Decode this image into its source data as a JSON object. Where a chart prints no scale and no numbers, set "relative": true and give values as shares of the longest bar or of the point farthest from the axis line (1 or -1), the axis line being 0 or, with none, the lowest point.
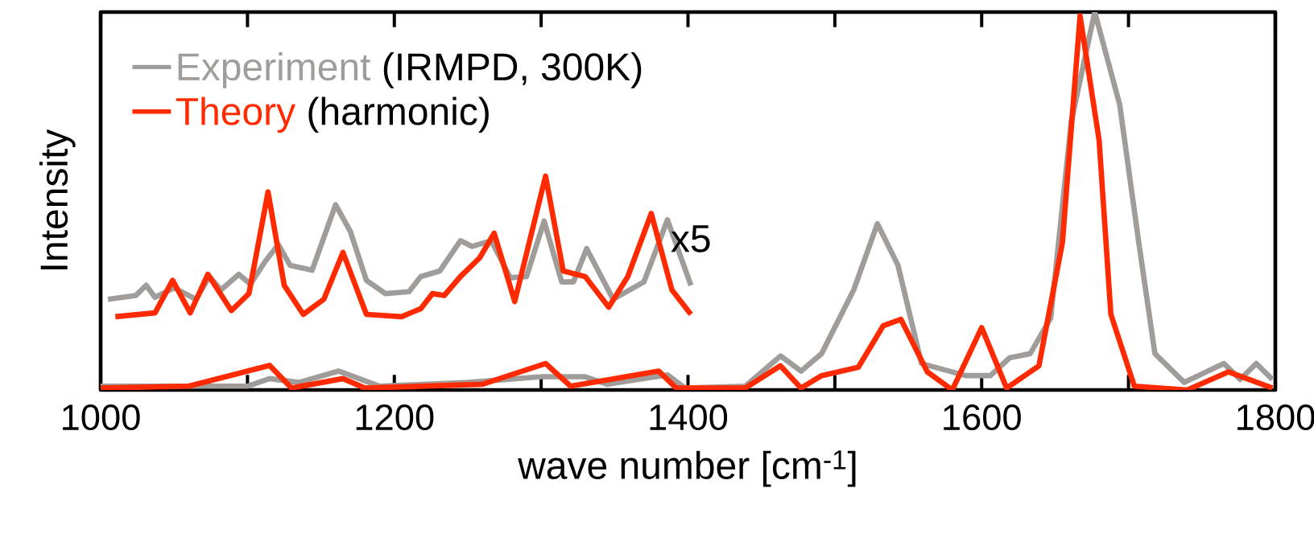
{
  "chart_data": {
    "type": "line",
    "relative": true,
    "xlabel": "wave number [cm$^{-1}$]",
    "ylabel": "Intensity",
    "xlim": [
      1000,
      1800
    ],
    "xticks": [
      1000,
      1200,
      1400,
      1600,
      1800
    ],
    "legend": "top left",
    "grid": false,
    "marker": "none",
    "line_style": "solid",
    "annotations": [
      "(IRMPD, 300K)",
      "(harmonic)",
      "x5"
    ],
    "series": [
      {
        "name": "Experiment",
        "color": "#a09c9a",
        "x": [
          1000,
          1100,
          1115,
          1135,
          1162,
          1190,
          1250,
          1300,
          1330,
          1345,
          1386,
          1398,
          1439,
          1463,
          1477,
          1491,
          1513,
          1529,
          1543,
          1559,
          1589,
          1606,
          1619,
          1633,
          1647,
          1661,
          1677,
          1694,
          1707,
          1718,
          1738,
          1765,
          1776,
          1787,
          1798
        ],
        "values": [
          0.01,
          0.01,
          0.03,
          0.02,
          0.05,
          0.01,
          0.02,
          0.035,
          0.035,
          0.015,
          0.04,
          0.005,
          0.01,
          0.09,
          0.05,
          0.096,
          0.266,
          0.44,
          0.33,
          0.07,
          0.038,
          0.038,
          0.085,
          0.096,
          0.19,
          0.71,
          1,
          0.755,
          0.39,
          0.096,
          0.02,
          0.07,
          0.028,
          0.07,
          0.028
        ]
      },
      {
        "name": "Theory",
        "color": "#ff2a00",
        "x": [
          1000,
          1060,
          1115,
          1130,
          1165,
          1180,
          1260,
          1303,
          1320,
          1380,
          1392,
          1439,
          1463,
          1477,
          1491,
          1516,
          1533,
          1545,
          1563,
          1580,
          1600,
          1617,
          1639,
          1655,
          1667,
          1680,
          1688,
          1704,
          1740,
          1768,
          1798
        ],
        "values": [
          0.005,
          0.01,
          0.065,
          0.005,
          0.03,
          0.005,
          0.015,
          0.07,
          0.01,
          0.05,
          0.005,
          0.005,
          0.064,
          0.005,
          0.038,
          0.06,
          0.17,
          0.187,
          0.048,
          0,
          0.165,
          0.005,
          0.064,
          0.39,
          0.99,
          0.66,
          0.2,
          0.01,
          0,
          0.048,
          0.005
        ]
      },
      {
        "color": "#a09c9a",
        "x": [
          1005,
          1024,
          1031,
          1037,
          1050,
          1065,
          1074,
          1082,
          1094,
          1102,
          1112,
          1121,
          1129,
          1144,
          1160,
          1170,
          1181,
          1194,
          1210,
          1218,
          1231,
          1245,
          1253,
          1266,
          1279,
          1290,
          1302,
          1314,
          1322,
          1331,
          1349,
          1370,
          1386,
          1402
        ],
        "values": [
          0.24,
          0.25,
          0.277,
          0.245,
          0.27,
          0.24,
          0.3,
          0.265,
          0.306,
          0.28,
          0.34,
          0.385,
          0.33,
          0.317,
          0.49,
          0.42,
          0.29,
          0.255,
          0.26,
          0.3,
          0.315,
          0.395,
          0.38,
          0.395,
          0.297,
          0.3,
          0.447,
          0.286,
          0.286,
          0.374,
          0.24,
          0.286,
          0.45,
          0.277
        ]
      },
      {
        "color": "#ff2a00",
        "x": [
          1010,
          1037,
          1049,
          1061,
          1073,
          1089,
          1101,
          1114,
          1125,
          1138,
          1152,
          1165,
          1181,
          1205,
          1218,
          1226,
          1234,
          1245,
          1258,
          1268,
          1282,
          1303,
          1315,
          1330,
          1346,
          1359,
          1375,
          1389,
          1402
        ],
        "values": [
          0.194,
          0.204,
          0.29,
          0.204,
          0.306,
          0.21,
          0.255,
          0.524,
          0.277,
          0.2,
          0.24,
          0.364,
          0.2,
          0.194,
          0.215,
          0.255,
          0.25,
          0.3,
          0.349,
          0.415,
          0.234,
          0.566,
          0.315,
          0.3,
          0.219,
          0.3,
          0.467,
          0.265,
          0.2
        ]
      }
    ]
  }
}
